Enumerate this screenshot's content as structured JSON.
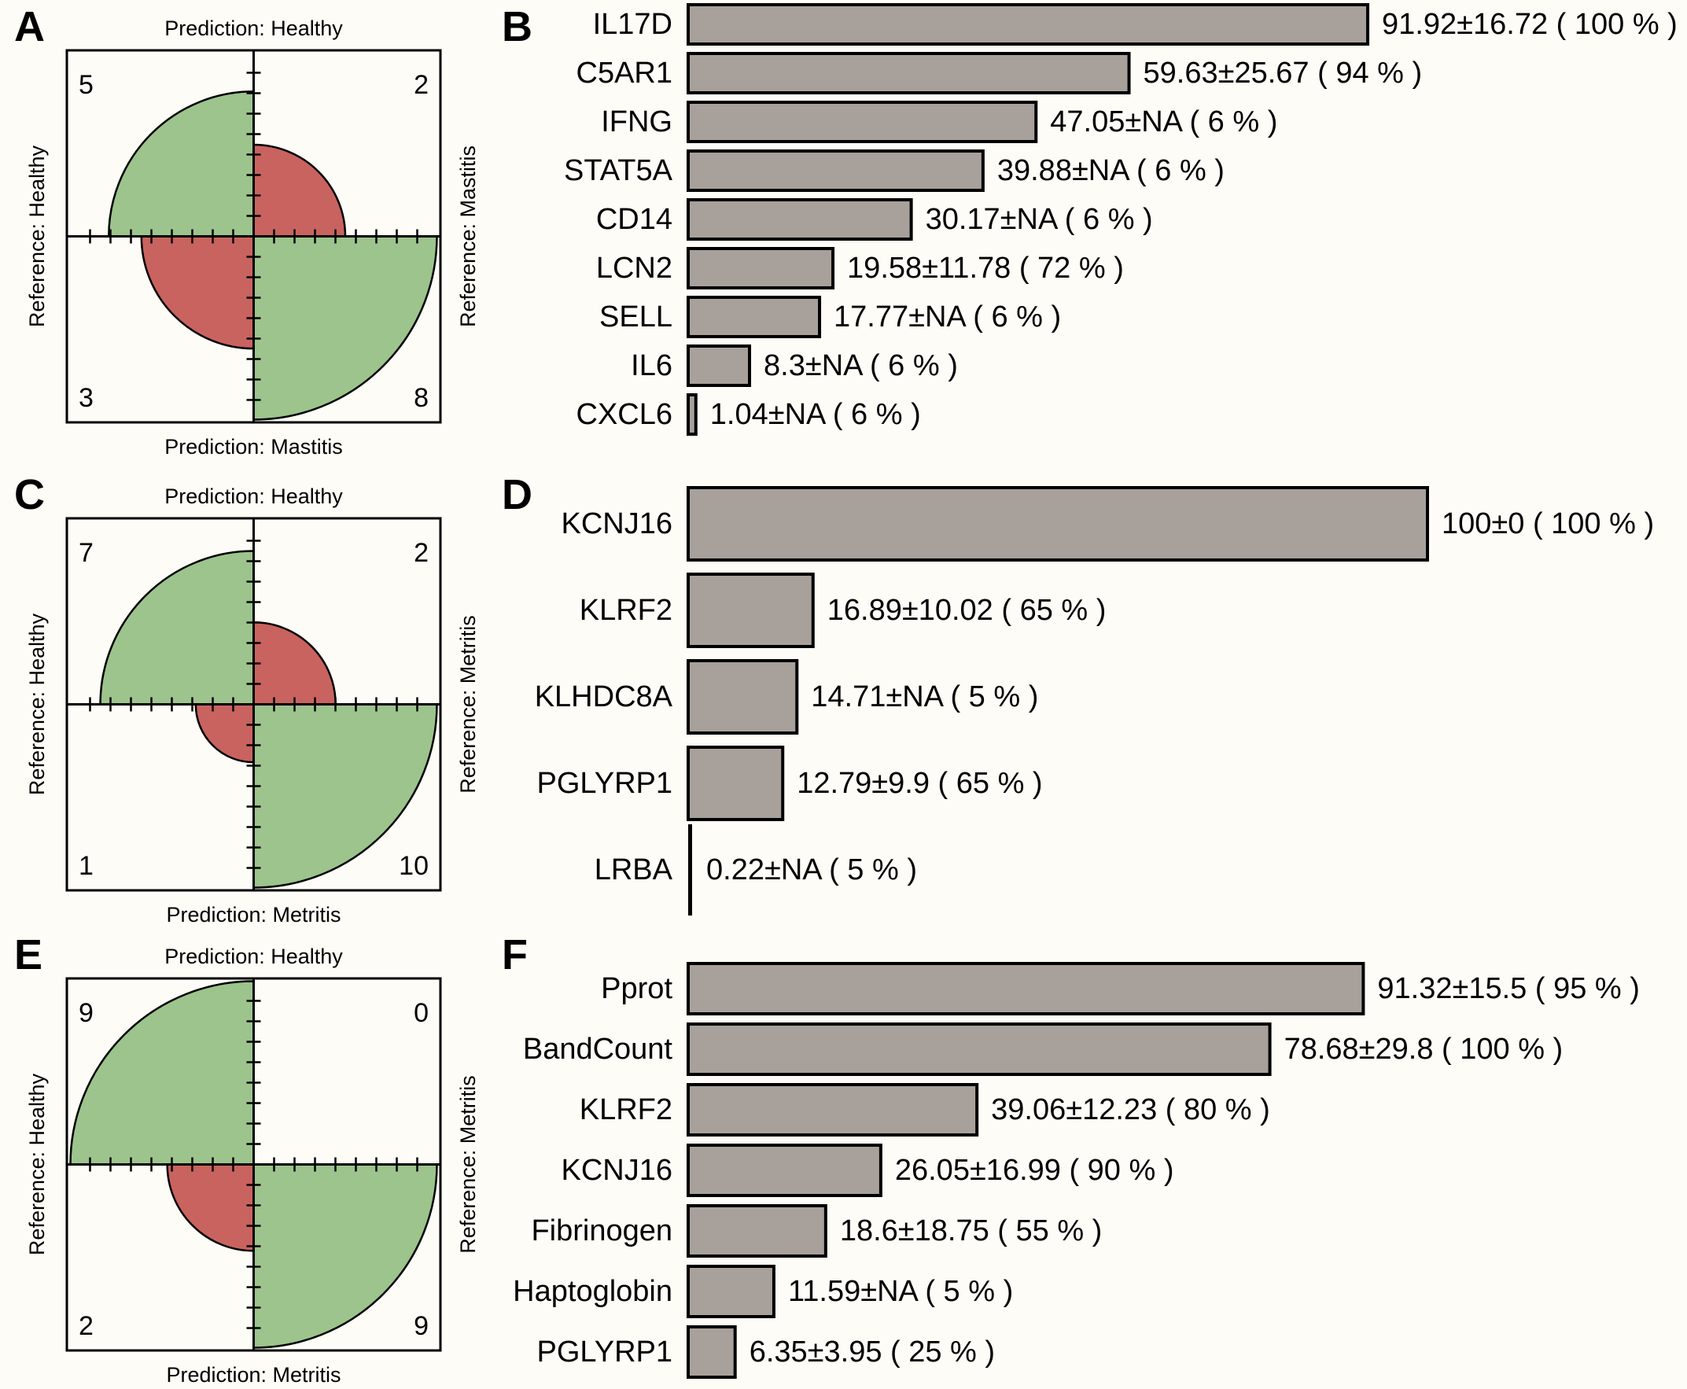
{
  "colors": {
    "quadrant_green": "#9cc48c",
    "quadrant_red": "#c9635f",
    "bar_fill": "#a8a09b",
    "outline": "#000000",
    "background": "#fdfcf7"
  },
  "chart_data": [
    {
      "panel": "A",
      "type": "fourfold_confusion",
      "axis_top": "Prediction: Healthy",
      "axis_bottom": "Prediction: Mastitis",
      "axis_left": "Reference: Healthy",
      "axis_right": "Reference: Mastitis",
      "quadrants": [
        {
          "position": "top_left",
          "count": 5,
          "color": "green"
        },
        {
          "position": "top_right",
          "count": 2,
          "color": "red"
        },
        {
          "position": "bottom_left",
          "count": 3,
          "color": "red"
        },
        {
          "position": "bottom_right",
          "count": 8,
          "color": "green"
        }
      ]
    },
    {
      "panel": "B",
      "type": "bar",
      "orientation": "horizontal",
      "xlim": [
        0,
        100
      ],
      "bars": [
        {
          "label": "IL17D",
          "value": 91.92,
          "annotation": "91.92±16.72 ( 100 % )"
        },
        {
          "label": "C5AR1",
          "value": 59.63,
          "annotation": "59.63±25.67 ( 94 % )"
        },
        {
          "label": "IFNG",
          "value": 47.05,
          "annotation": "47.05±NA ( 6 % )"
        },
        {
          "label": "STAT5A",
          "value": 39.88,
          "annotation": "39.88±NA ( 6 % )"
        },
        {
          "label": "CD14",
          "value": 30.17,
          "annotation": "30.17±NA ( 6 % )"
        },
        {
          "label": "LCN2",
          "value": 19.58,
          "annotation": "19.58±11.78 ( 72 % )"
        },
        {
          "label": "SELL",
          "value": 17.77,
          "annotation": "17.77±NA ( 6 % )"
        },
        {
          "label": "IL6",
          "value": 8.3,
          "annotation": "8.3±NA ( 6 % )"
        },
        {
          "label": "CXCL6",
          "value": 1.04,
          "annotation": "1.04±NA ( 6 % )"
        }
      ]
    },
    {
      "panel": "C",
      "type": "fourfold_confusion",
      "axis_top": "Prediction: Healthy",
      "axis_bottom": "Prediction: Metritis",
      "axis_left": "Reference: Healthy",
      "axis_right": "Reference: Metritis",
      "quadrants": [
        {
          "position": "top_left",
          "count": 7,
          "color": "green"
        },
        {
          "position": "top_right",
          "count": 2,
          "color": "red"
        },
        {
          "position": "bottom_left",
          "count": 1,
          "color": "red"
        },
        {
          "position": "bottom_right",
          "count": 10,
          "color": "green"
        }
      ]
    },
    {
      "panel": "D",
      "type": "bar",
      "orientation": "horizontal",
      "xlim": [
        0,
        100
      ],
      "bars": [
        {
          "label": "KCNJ16",
          "value": 100,
          "annotation": "100±0 ( 100 % )"
        },
        {
          "label": "KLRF2",
          "value": 16.89,
          "annotation": "16.89±10.02 ( 65 % )"
        },
        {
          "label": "KLHDC8A",
          "value": 14.71,
          "annotation": "14.71±NA ( 5 % )"
        },
        {
          "label": "PGLYRP1",
          "value": 12.79,
          "annotation": "12.79±9.9 ( 65 % )"
        },
        {
          "label": "LRBA",
          "value": 0.22,
          "annotation": "0.22±NA ( 5 % )"
        }
      ]
    },
    {
      "panel": "E",
      "type": "fourfold_confusion",
      "axis_top": "Prediction: Healthy",
      "axis_bottom": "Prediction: Metritis",
      "axis_left": "Reference: Healthy",
      "axis_right": "Reference: Metritis",
      "quadrants": [
        {
          "position": "top_left",
          "count": 9,
          "color": "green"
        },
        {
          "position": "top_right",
          "count": 0,
          "color": "red"
        },
        {
          "position": "bottom_left",
          "count": 2,
          "color": "red"
        },
        {
          "position": "bottom_right",
          "count": 9,
          "color": "green"
        }
      ]
    },
    {
      "panel": "F",
      "type": "bar",
      "orientation": "horizontal",
      "xlim": [
        0,
        100
      ],
      "bars": [
        {
          "label": "Pprot",
          "value": 91.32,
          "annotation": "91.32±15.5 ( 95 % )"
        },
        {
          "label": "BandCount",
          "value": 78.68,
          "annotation": "78.68±29.8 ( 100 % )"
        },
        {
          "label": "KLRF2",
          "value": 39.06,
          "annotation": "39.06±12.23 ( 80 % )"
        },
        {
          "label": "KCNJ16",
          "value": 26.05,
          "annotation": "26.05±16.99 ( 90 % )"
        },
        {
          "label": "Fibrinogen",
          "value": 18.6,
          "annotation": "18.6±18.75 ( 55 % )"
        },
        {
          "label": "Haptoglobin",
          "value": 11.59,
          "annotation": "11.59±NA ( 5 % )"
        },
        {
          "label": "PGLYRP1",
          "value": 6.35,
          "annotation": "6.35±3.95 ( 25 % )"
        }
      ]
    }
  ]
}
